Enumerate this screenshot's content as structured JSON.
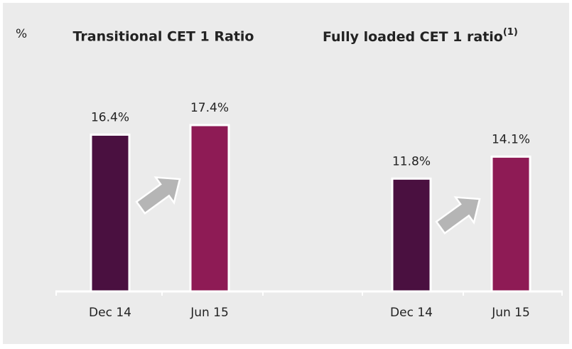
{
  "unit": "%",
  "chart_data": [
    {
      "type": "bar",
      "title": "Transitional CET 1 Ratio",
      "categories": [
        "Dec 14",
        "Jun 15"
      ],
      "values": [
        16.4,
        17.4
      ],
      "value_labels": [
        "16.4%",
        "17.4%"
      ],
      "colors": [
        "#4a1040",
        "#8e1b55"
      ]
    },
    {
      "type": "bar",
      "title": "Fully loaded CET 1 ratio",
      "title_note": "(1)",
      "categories": [
        "Dec 14",
        "Jun 15"
      ],
      "values": [
        11.8,
        14.1
      ],
      "value_labels": [
        "11.8%",
        "14.1%"
      ],
      "colors": [
        "#4a1040",
        "#8e1b55"
      ]
    }
  ]
}
